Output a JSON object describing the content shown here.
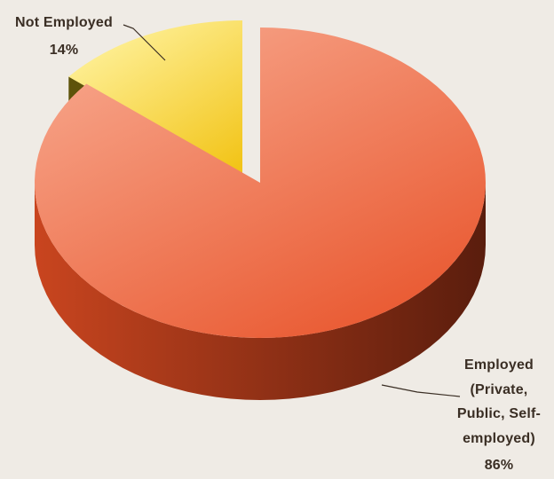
{
  "chart_data": {
    "type": "pie",
    "style": "3d-exploded",
    "slices": [
      {
        "label_lines": [
          "Employed",
          "(Private,",
          "Public, Self-",
          "employed)"
        ],
        "pct_text": "86%",
        "value": 86,
        "color_top_light": "#f7a58a",
        "color_top_dark": "#e8532a",
        "color_side_light": "#c9451f",
        "color_side_dark": "#5a1d0d"
      },
      {
        "label_lines": [
          "Not Employed"
        ],
        "pct_text": "14%",
        "value": 14,
        "color_top_light": "#fff3a0",
        "color_top_dark": "#f2c418",
        "color_side_light": "#8a7a10",
        "color_side_dark": "#4a3f06"
      }
    ]
  }
}
